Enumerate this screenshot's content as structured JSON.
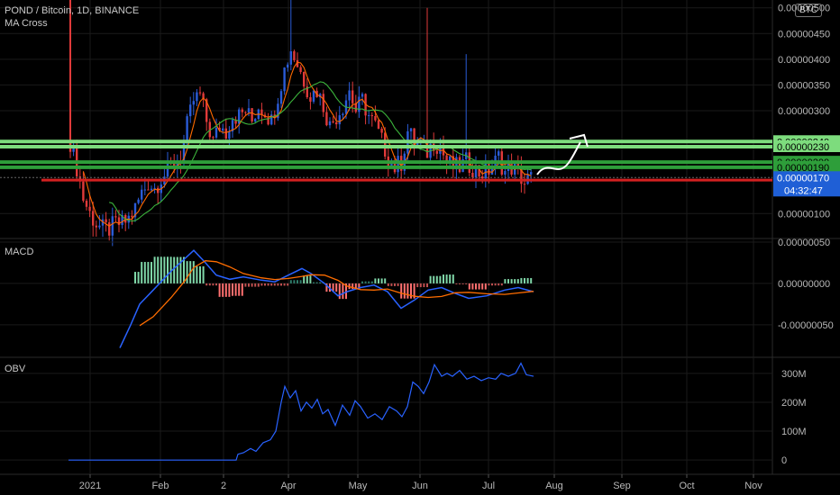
{
  "header": {
    "symbol": "POND / Bitcoin, 1D, BINANCE",
    "indicator": "MA Cross",
    "currency_badge": "BTC"
  },
  "panes": {
    "macd_label": "MACD",
    "obv_label": "OBV"
  },
  "countdown": "04:32:47",
  "chart_data": [
    {
      "type": "candlestick",
      "x_axis_ticks": [
        "2021",
        "Feb",
        "2",
        "Apr",
        "May",
        "Jun",
        "Jul",
        "Aug",
        "Sep",
        "Oct",
        "Nov"
      ],
      "y_ticks": [
        "0.00000500",
        "0.00000450",
        "0.00000400",
        "0.00000350",
        "0.00000300",
        "0.00000100"
      ],
      "ylim": [
        5.5e-07,
        5.1e-06
      ],
      "close_path": [
        [
          0,
          2.4e-06
        ],
        [
          2,
          1.9e-06
        ],
        [
          4,
          1.3e-06
        ],
        [
          6,
          1e-06
        ],
        [
          8,
          8e-07
        ],
        [
          10,
          7e-07
        ],
        [
          12,
          7e-07
        ],
        [
          14,
          8e-07
        ],
        [
          16,
          8e-07
        ],
        [
          18,
          9e-07
        ],
        [
          20,
          1.1e-06
        ],
        [
          22,
          1.4e-06
        ],
        [
          24,
          1.6e-06
        ],
        [
          26,
          1.5e-06
        ],
        [
          28,
          1.7e-06
        ],
        [
          30,
          1.8e-06
        ],
        [
          32,
          2e-06
        ],
        [
          34,
          2.1e-06
        ],
        [
          36,
          2.7e-06
        ],
        [
          38,
          3.2e-06
        ],
        [
          40,
          3.3e-06
        ],
        [
          42,
          2.8e-06
        ],
        [
          44,
          2.4e-06
        ],
        [
          46,
          2.7e-06
        ],
        [
          48,
          2.6e-06
        ],
        [
          50,
          2.9e-06
        ],
        [
          52,
          2.9e-06
        ],
        [
          54,
          3e-06
        ],
        [
          56,
          2.8e-06
        ],
        [
          58,
          3.1e-06
        ],
        [
          60,
          3e-06
        ],
        [
          62,
          2.8e-06
        ],
        [
          64,
          3.3e-06
        ],
        [
          66,
          3.8e-06
        ],
        [
          68,
          4.2e-06
        ],
        [
          70,
          3.9e-06
        ],
        [
          72,
          3.6e-06
        ],
        [
          74,
          3.3e-06
        ],
        [
          76,
          3.4e-06
        ],
        [
          78,
          3.1e-06
        ],
        [
          80,
          2.7e-06
        ],
        [
          82,
          2.9e-06
        ],
        [
          84,
          3.1e-06
        ],
        [
          86,
          3.4e-06
        ],
        [
          88,
          3e-06
        ],
        [
          90,
          3.2e-06
        ],
        [
          92,
          2.9e-06
        ],
        [
          94,
          2.7e-06
        ],
        [
          96,
          2.4e-06
        ],
        [
          98,
          2.1e-06
        ],
        [
          100,
          1.9e-06
        ],
        [
          102,
          2e-06
        ],
        [
          104,
          2.6e-06
        ],
        [
          106,
          2.4e-06
        ],
        [
          108,
          2.3e-06
        ],
        [
          110,
          2.2e-06
        ],
        [
          112,
          2.4e-06
        ],
        [
          114,
          2.3e-06
        ],
        [
          116,
          2e-06
        ],
        [
          118,
          1.9e-06
        ],
        [
          120,
          1.9e-06
        ],
        [
          122,
          2e-06
        ],
        [
          124,
          1.9e-06
        ],
        [
          126,
          1.8e-06
        ],
        [
          128,
          1.8e-06
        ],
        [
          130,
          1.9e-06
        ],
        [
          132,
          2.1e-06
        ],
        [
          134,
          1.8e-06
        ],
        [
          136,
          1.9e-06
        ],
        [
          138,
          1.8e-06
        ],
        [
          140,
          1.6e-06
        ],
        [
          142,
          1.7e-06
        ]
      ],
      "price_levels": [
        {
          "label": "0.00000240",
          "value": 2.4e-06,
          "color": "#7ddc7d"
        },
        {
          "label": "0.00000230",
          "value": 2.3e-06,
          "color": "#7ddc7d"
        },
        {
          "label": "0.00000200",
          "value": 2e-06,
          "color": "#2e9e3a"
        },
        {
          "label": "0.00000190",
          "value": 1.9e-06,
          "color": "#2e9e3a"
        },
        {
          "label": "0.00000170",
          "value": 1.7e-06,
          "color": "#1f5fd6"
        }
      ],
      "support_line": {
        "value": 1.65e-06,
        "color": "#d42020"
      }
    },
    {
      "type": "line",
      "name": "MACD",
      "y_ticks": [
        "0.00000050",
        "0.00000000",
        "-0.00000050"
      ],
      "ylim": [
        -8.5e-07,
        5e-07
      ]
    },
    {
      "type": "line",
      "name": "OBV",
      "y_ticks": [
        "300M",
        "200M",
        "100M",
        "0"
      ],
      "ylim": [
        -40,
        340
      ]
    }
  ],
  "colors": {
    "up": "#2a5bd7",
    "down": "#e03a3a",
    "ma_fast": "#ff6a00",
    "ma_slow": "#3bb33b",
    "macd_line": "#2962ff",
    "signal_line": "#ff6d00",
    "obv_line": "#2962ff",
    "grid": "#1a1a1a",
    "axis_text": "#b8b8b8"
  }
}
